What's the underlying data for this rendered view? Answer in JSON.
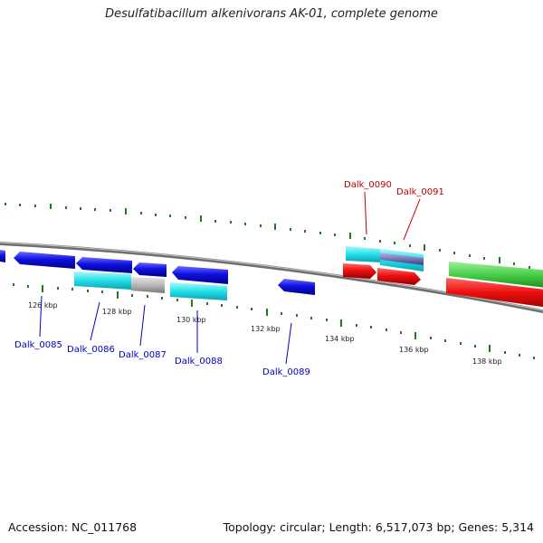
{
  "header": {
    "title": "Desulfatibacillum alkenivorans AK-01, complete genome"
  },
  "footer": {
    "accession": "Accession: NC_011768",
    "topology": "Topology: circular; Length: 6,517,073 bp; Genes: 5,314"
  },
  "colors": {
    "backbone": "#7f7f7f",
    "tick": "#1e7a1e",
    "gene_blue": "#1010e0",
    "gene_cyan": "#22e0e8",
    "gene_gray": "#b8b8b8",
    "gene_red": "#ee1010",
    "gene_green": "#44cc44",
    "gene_purple": "#7878b8",
    "label_blue": "#0000c0",
    "label_red": "#c00000"
  },
  "scale_labels": [
    "126 kbp",
    "128 kbp",
    "130 kbp",
    "132 kbp",
    "134 kbp",
    "136 kbp",
    "138 kbp"
  ],
  "gene_labels": [
    {
      "text": "Dalk_0085",
      "color": "blue"
    },
    {
      "text": "Dalk_0086",
      "color": "blue"
    },
    {
      "text": "Dalk_0087",
      "color": "blue"
    },
    {
      "text": "Dalk_0088",
      "color": "blue"
    },
    {
      "text": "Dalk_0089",
      "color": "blue"
    },
    {
      "text": "Dalk_0090",
      "color": "red"
    },
    {
      "text": "Dalk_0091",
      "color": "red"
    }
  ]
}
